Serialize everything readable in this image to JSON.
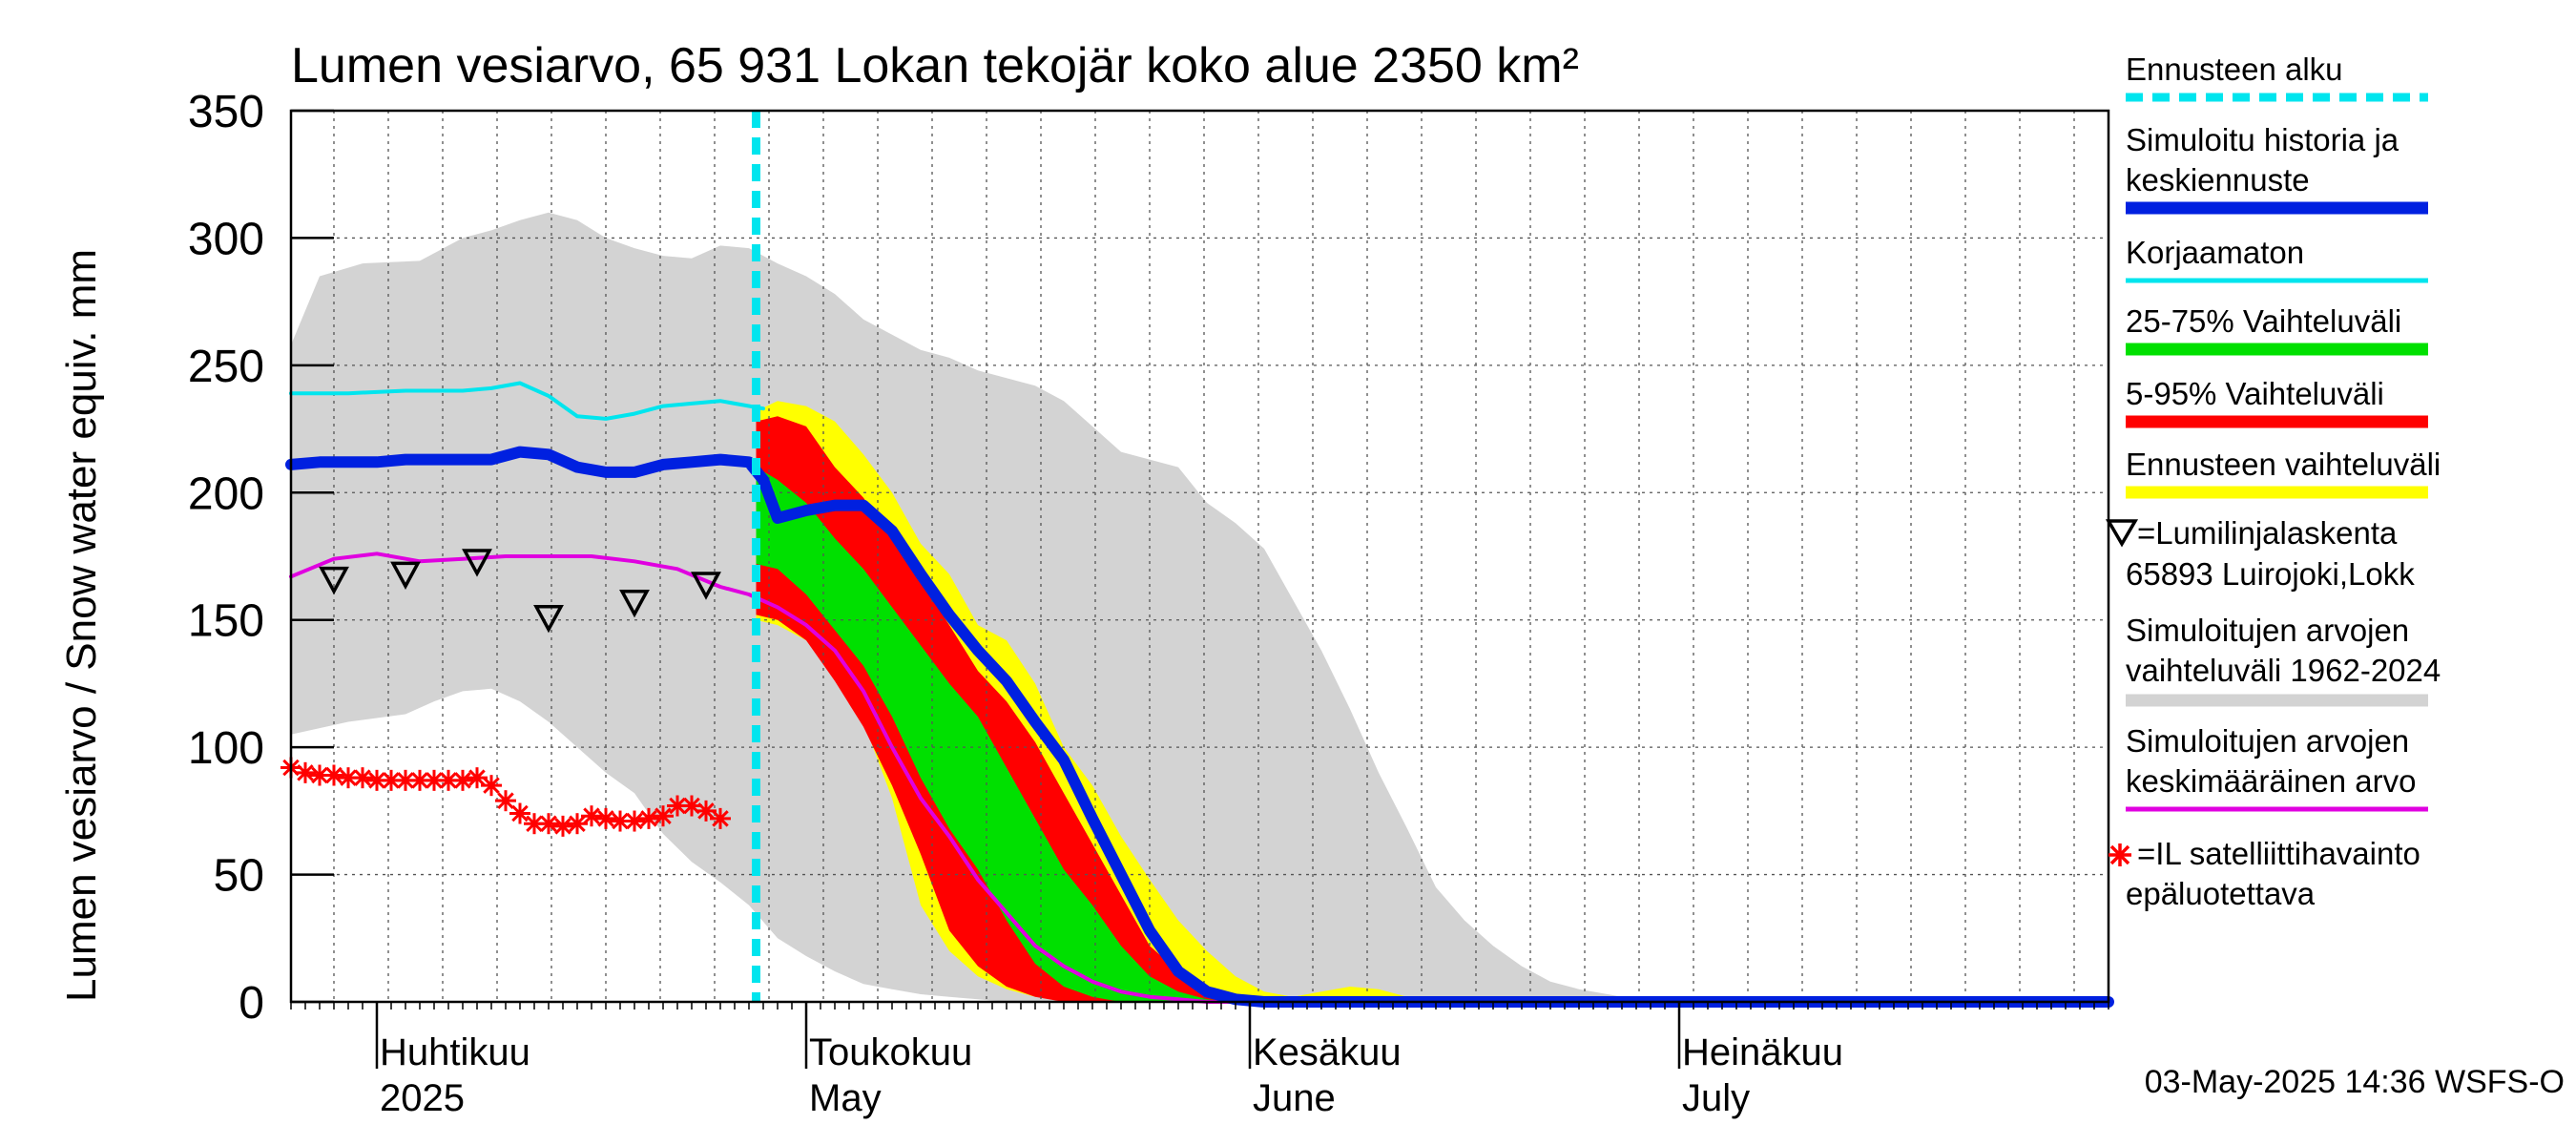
{
  "colors": {
    "forecast_start": "#00e5ee",
    "sim_history": "#0020e0",
    "uncorrected": "#00e5ee",
    "band_25_75": "#00e000",
    "band_5_95": "#ff0000",
    "forecast_range": "#ffff00",
    "sim_range": "#d3d3d3",
    "sim_mean": "#e000e0",
    "obs_line": "#000000",
    "satellite": "#ff0000"
  },
  "chart_data": {
    "type": "line",
    "title": "Lumen vesiarvo, 65 931 Lokan tekojär koko alue 2350 km²",
    "ylabel": "Lumen vesiarvo / Snow water equiv.    mm",
    "ylim": [
      0,
      350
    ],
    "yticks": [
      0,
      50,
      100,
      150,
      200,
      250,
      300,
      350
    ],
    "x_unit": "day from 2025-03-26",
    "xlim": [
      0,
      127
    ],
    "forecast_start_day": 32.5,
    "month_labels": [
      {
        "fi": "Huhtikuu",
        "en": "2025",
        "day": 6
      },
      {
        "fi": "Toukokuu",
        "en": "May",
        "day": 36
      },
      {
        "fi": "Kesäkuu",
        "en": "June",
        "day": 67
      },
      {
        "fi": "Heinäkuu",
        "en": "July",
        "day": 97
      }
    ],
    "month_boundaries": [
      6,
      36,
      67,
      97
    ],
    "timestamp": "03-May-2025 14:36 WSFS-O",
    "sim_range": {
      "upper": [
        [
          0,
          258
        ],
        [
          2,
          285
        ],
        [
          5,
          290
        ],
        [
          9,
          291
        ],
        [
          12,
          300
        ],
        [
          14,
          303
        ],
        [
          16,
          307
        ],
        [
          18,
          310
        ],
        [
          20,
          307
        ],
        [
          22,
          300
        ],
        [
          24,
          296
        ],
        [
          26,
          293
        ],
        [
          28,
          292
        ],
        [
          30,
          297
        ],
        [
          32,
          296
        ],
        [
          34,
          290
        ],
        [
          36,
          285
        ],
        [
          38,
          278
        ],
        [
          40,
          268
        ],
        [
          42,
          262
        ],
        [
          44,
          256
        ],
        [
          46,
          253
        ],
        [
          48,
          248
        ],
        [
          50,
          245
        ],
        [
          52,
          242
        ],
        [
          54,
          236
        ],
        [
          56,
          226
        ],
        [
          58,
          216
        ],
        [
          60,
          213
        ],
        [
          62,
          210
        ],
        [
          64,
          196
        ],
        [
          66,
          188
        ],
        [
          68,
          178
        ],
        [
          70,
          158
        ],
        [
          72,
          138
        ],
        [
          74,
          115
        ],
        [
          76,
          90
        ],
        [
          78,
          68
        ],
        [
          80,
          45
        ],
        [
          82,
          32
        ],
        [
          84,
          22
        ],
        [
          86,
          14
        ],
        [
          88,
          8
        ],
        [
          90,
          5
        ],
        [
          92,
          3
        ],
        [
          94,
          1
        ],
        [
          96,
          0
        ],
        [
          127,
          0
        ]
      ],
      "lower": [
        [
          0,
          105
        ],
        [
          4,
          110
        ],
        [
          8,
          113
        ],
        [
          10,
          118
        ],
        [
          12,
          122
        ],
        [
          14,
          123
        ],
        [
          16,
          118
        ],
        [
          18,
          110
        ],
        [
          20,
          100
        ],
        [
          22,
          90
        ],
        [
          24,
          82
        ],
        [
          26,
          66
        ],
        [
          28,
          55
        ],
        [
          30,
          47
        ],
        [
          32,
          38
        ],
        [
          34,
          25
        ],
        [
          36,
          18
        ],
        [
          38,
          12
        ],
        [
          40,
          7
        ],
        [
          42,
          5
        ],
        [
          44,
          3
        ],
        [
          46,
          2
        ],
        [
          48,
          1
        ],
        [
          50,
          0
        ],
        [
          127,
          0
        ]
      ]
    },
    "forecast_range": {
      "upper": [
        [
          32.5,
          232
        ],
        [
          34,
          236
        ],
        [
          36,
          234
        ],
        [
          38,
          228
        ],
        [
          40,
          215
        ],
        [
          42,
          200
        ],
        [
          44,
          180
        ],
        [
          46,
          168
        ],
        [
          48,
          148
        ],
        [
          50,
          142
        ],
        [
          52,
          125
        ],
        [
          54,
          100
        ],
        [
          56,
          85
        ],
        [
          58,
          65
        ],
        [
          60,
          48
        ],
        [
          62,
          32
        ],
        [
          64,
          20
        ],
        [
          66,
          10
        ],
        [
          68,
          4
        ],
        [
          70,
          2
        ],
        [
          72,
          4
        ],
        [
          74,
          6
        ],
        [
          76,
          5
        ],
        [
          78,
          2
        ],
        [
          80,
          0
        ],
        [
          127,
          0
        ]
      ],
      "lower": [
        [
          32.5,
          150
        ],
        [
          34,
          148
        ],
        [
          36,
          142
        ],
        [
          38,
          127
        ],
        [
          40,
          110
        ],
        [
          42,
          80
        ],
        [
          44,
          38
        ],
        [
          46,
          20
        ],
        [
          48,
          10
        ],
        [
          50,
          5
        ],
        [
          52,
          2
        ],
        [
          54,
          1
        ],
        [
          56,
          0
        ],
        [
          127,
          0
        ]
      ]
    },
    "band_5_95": {
      "upper": [
        [
          32.5,
          228
        ],
        [
          34,
          230
        ],
        [
          36,
          226
        ],
        [
          38,
          210
        ],
        [
          40,
          198
        ],
        [
          42,
          182
        ],
        [
          44,
          165
        ],
        [
          46,
          148
        ],
        [
          48,
          130
        ],
        [
          50,
          118
        ],
        [
          52,
          102
        ],
        [
          54,
          82
        ],
        [
          56,
          62
        ],
        [
          58,
          42
        ],
        [
          60,
          22
        ],
        [
          62,
          12
        ],
        [
          64,
          5
        ],
        [
          66,
          2
        ],
        [
          68,
          0
        ],
        [
          127,
          0
        ]
      ],
      "lower": [
        [
          32.5,
          152
        ],
        [
          34,
          150
        ],
        [
          36,
          142
        ],
        [
          38,
          126
        ],
        [
          40,
          108
        ],
        [
          42,
          85
        ],
        [
          44,
          58
        ],
        [
          46,
          28
        ],
        [
          48,
          14
        ],
        [
          50,
          6
        ],
        [
          52,
          2
        ],
        [
          54,
          0
        ],
        [
          127,
          0
        ]
      ]
    },
    "band_25_75": {
      "upper": [
        [
          32.5,
          210
        ],
        [
          34,
          205
        ],
        [
          36,
          196
        ],
        [
          38,
          182
        ],
        [
          40,
          170
        ],
        [
          42,
          155
        ],
        [
          44,
          140
        ],
        [
          46,
          125
        ],
        [
          48,
          112
        ],
        [
          50,
          92
        ],
        [
          52,
          72
        ],
        [
          54,
          52
        ],
        [
          56,
          38
        ],
        [
          58,
          22
        ],
        [
          60,
          10
        ],
        [
          62,
          4
        ],
        [
          64,
          1
        ],
        [
          66,
          0
        ],
        [
          127,
          0
        ]
      ],
      "lower": [
        [
          32.5,
          172
        ],
        [
          34,
          170
        ],
        [
          36,
          160
        ],
        [
          38,
          146
        ],
        [
          40,
          132
        ],
        [
          42,
          112
        ],
        [
          44,
          88
        ],
        [
          46,
          68
        ],
        [
          48,
          52
        ],
        [
          50,
          32
        ],
        [
          52,
          15
        ],
        [
          54,
          6
        ],
        [
          56,
          2
        ],
        [
          58,
          0
        ],
        [
          127,
          0
        ]
      ]
    },
    "series": [
      {
        "name": "Simuloitu historia ja keskiennuste",
        "key": "sim_history",
        "points": [
          [
            0,
            211
          ],
          [
            2,
            212
          ],
          [
            4,
            212
          ],
          [
            6,
            212
          ],
          [
            8,
            213
          ],
          [
            10,
            213
          ],
          [
            12,
            213
          ],
          [
            14,
            213
          ],
          [
            16,
            216
          ],
          [
            18,
            215
          ],
          [
            20,
            210
          ],
          [
            22,
            208
          ],
          [
            24,
            208
          ],
          [
            26,
            211
          ],
          [
            28,
            212
          ],
          [
            30,
            213
          ],
          [
            32,
            212
          ],
          [
            33,
            205
          ],
          [
            34,
            190
          ],
          [
            36,
            193
          ],
          [
            38,
            195
          ],
          [
            40,
            195
          ],
          [
            42,
            185
          ],
          [
            44,
            168
          ],
          [
            46,
            152
          ],
          [
            48,
            138
          ],
          [
            50,
            126
          ],
          [
            52,
            110
          ],
          [
            54,
            95
          ],
          [
            56,
            72
          ],
          [
            58,
            50
          ],
          [
            60,
            28
          ],
          [
            62,
            12
          ],
          [
            64,
            4
          ],
          [
            66,
            1
          ],
          [
            68,
            0
          ],
          [
            127,
            0
          ]
        ]
      },
      {
        "name": "Korjaamaton",
        "key": "uncorrected",
        "points": [
          [
            0,
            239
          ],
          [
            4,
            239
          ],
          [
            8,
            240
          ],
          [
            12,
            240
          ],
          [
            14,
            241
          ],
          [
            16,
            243
          ],
          [
            18,
            238
          ],
          [
            20,
            230
          ],
          [
            22,
            229
          ],
          [
            24,
            231
          ],
          [
            26,
            234
          ],
          [
            28,
            235
          ],
          [
            30,
            236
          ],
          [
            31,
            235
          ],
          [
            33,
            233
          ]
        ]
      },
      {
        "name": "Simuloitujen arvojen keskimääräinen arvo",
        "key": "sim_mean",
        "points": [
          [
            0,
            167
          ],
          [
            3,
            174
          ],
          [
            6,
            176
          ],
          [
            9,
            173
          ],
          [
            12,
            174
          ],
          [
            15,
            175
          ],
          [
            18,
            175
          ],
          [
            21,
            175
          ],
          [
            24,
            173
          ],
          [
            27,
            170
          ],
          [
            30,
            163
          ],
          [
            32,
            160
          ],
          [
            34,
            155
          ],
          [
            36,
            148
          ],
          [
            38,
            138
          ],
          [
            40,
            122
          ],
          [
            42,
            100
          ],
          [
            44,
            80
          ],
          [
            46,
            65
          ],
          [
            48,
            48
          ],
          [
            50,
            35
          ],
          [
            52,
            22
          ],
          [
            54,
            14
          ],
          [
            56,
            8
          ],
          [
            58,
            4
          ],
          [
            60,
            2
          ],
          [
            62,
            1
          ],
          [
            64,
            0
          ],
          [
            127,
            0
          ]
        ]
      }
    ],
    "obs_points": [
      [
        3,
        165
      ],
      [
        8,
        167
      ],
      [
        13,
        172
      ],
      [
        18,
        150
      ],
      [
        24,
        156
      ],
      [
        29,
        163
      ]
    ],
    "satellite_points": [
      [
        0,
        92
      ],
      [
        1,
        90
      ],
      [
        2,
        89
      ],
      [
        3,
        89
      ],
      [
        4,
        88
      ],
      [
        5,
        88
      ],
      [
        6,
        87
      ],
      [
        7,
        87
      ],
      [
        8,
        87
      ],
      [
        9,
        87
      ],
      [
        10,
        87
      ],
      [
        11,
        87
      ],
      [
        12,
        87
      ],
      [
        13,
        88
      ],
      [
        14,
        85
      ],
      [
        15,
        79
      ],
      [
        16,
        74
      ],
      [
        17,
        70
      ],
      [
        18,
        70
      ],
      [
        19,
        69
      ],
      [
        20,
        70
      ],
      [
        21,
        73
      ],
      [
        22,
        72
      ],
      [
        23,
        71
      ],
      [
        24,
        71
      ],
      [
        25,
        72
      ],
      [
        26,
        73
      ],
      [
        27,
        77
      ],
      [
        28,
        77
      ],
      [
        29,
        75
      ],
      [
        30,
        72
      ]
    ]
  },
  "legend": {
    "forecast_start": "Ennusteen alku",
    "sim_history_1": "Simuloitu historia ja",
    "sim_history_2": "keskiennuste",
    "uncorrected": "Korjaamaton",
    "band_25_75": "25-75% Vaihteluväli",
    "band_5_95": "5-95% Vaihteluväli",
    "forecast_range": "Ennusteen vaihteluväli",
    "obs_1": "=Lumilinjalaskenta",
    "obs_2": "65893 Luirojoki,Lokk",
    "sim_range_1": "Simuloitujen arvojen",
    "sim_range_2": "vaihteluväli 1962-2024",
    "sim_mean_1": "Simuloitujen arvojen",
    "sim_mean_2": "keskimääräinen arvo",
    "satellite_1": "=IL satelliittihavainto",
    "satellite_2": "epäluotettava"
  }
}
